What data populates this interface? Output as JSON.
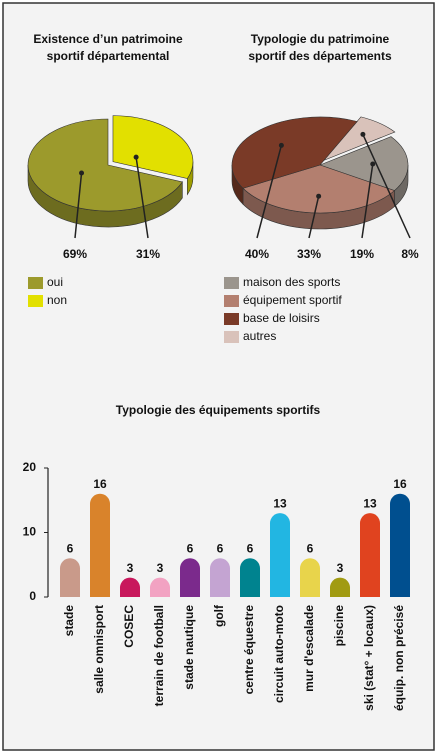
{
  "chart_data": [
    {
      "type": "pie",
      "title": [
        "Existence d’un patrimoine",
        "sportif départemental"
      ],
      "categories": [
        "oui",
        "non"
      ],
      "values": [
        69,
        31
      ],
      "value_labels": [
        "69%",
        "31%"
      ],
      "colors": [
        "#9c9a2c",
        "#e2e000"
      ]
    },
    {
      "type": "pie",
      "title": [
        "Typologie du patrimoine",
        "sportif des départements"
      ],
      "categories": [
        "maison des sports",
        "équipement sportif",
        "base de loisirs",
        "autres"
      ],
      "values": [
        19,
        33,
        40,
        8
      ],
      "value_labels": [
        "19%",
        "33%",
        "40%",
        "8%"
      ],
      "colors": [
        "#9b958d",
        "#b37f6f",
        "#7a3a27",
        "#d9c2ba"
      ]
    },
    {
      "type": "bar",
      "title": [
        "Typologie des équipements sportifs"
      ],
      "categories": [
        "stade",
        "salle omnisport",
        "COSEC",
        "terrain de football",
        "stade nautique",
        "golf",
        "centre équestre",
        "circuit auto-moto",
        "mur d'escalade",
        "piscine",
        "ski (stat° + locaux)",
        "équip. non précisé"
      ],
      "values": [
        6,
        16,
        3,
        3,
        6,
        6,
        6,
        13,
        6,
        3,
        13,
        16
      ],
      "colors": [
        "#c99a8a",
        "#d9832b",
        "#c8185c",
        "#f2a2c2",
        "#7b2a8c",
        "#c4a4d2",
        "#00838f",
        "#22b6e2",
        "#e8d44b",
        "#a19b12",
        "#e0431f",
        "#004f8f"
      ],
      "ylim": [
        0,
        20
      ],
      "yticks": [
        0,
        10,
        20
      ]
    }
  ]
}
